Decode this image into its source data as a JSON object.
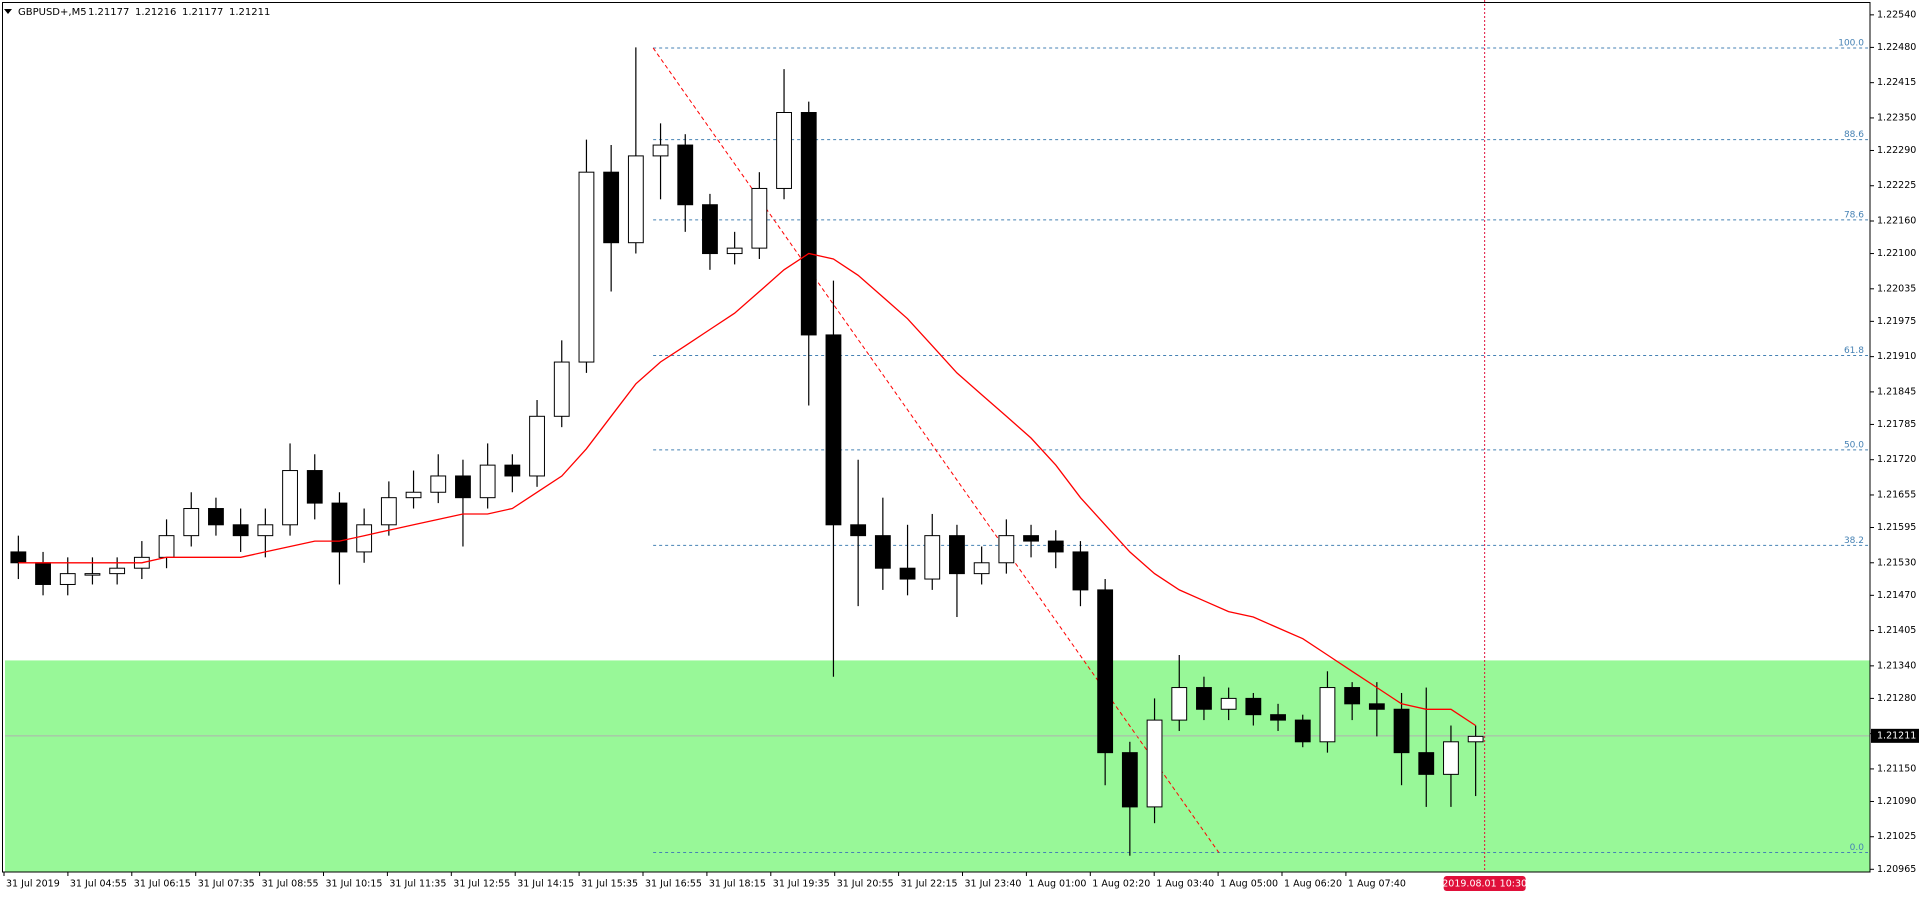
{
  "chart_data": {
    "type": "candlestick",
    "symbol": "GBPUSD+,M5",
    "ohlc": [
      1.21177,
      1.21216,
      1.21177,
      1.21211
    ],
    "open": [
      1.2155,
      1.2153,
      1.2149,
      1.2151,
      1.2151,
      1.2152,
      1.2154,
      1.2158,
      1.2163,
      1.216,
      1.2158,
      1.216,
      1.217,
      1.2164,
      1.2155,
      1.216,
      1.2165,
      1.2166,
      1.2169,
      1.2165,
      1.2171,
      1.2169,
      1.218,
      1.219,
      1.2225,
      1.2212,
      1.2228,
      1.223,
      1.2219,
      1.221,
      1.2211,
      1.2222,
      1.2236,
      1.2195,
      1.216,
      1.2158,
      1.2152,
      1.215,
      1.2158,
      1.2151,
      1.2153,
      1.2158,
      1.2157,
      1.2155,
      1.2148,
      1.2118,
      1.2108,
      1.2124,
      1.213,
      1.2126,
      1.2128,
      1.2125,
      1.2124,
      1.212,
      1.213,
      1.2127,
      1.2126,
      1.2118,
      1.2114,
      1.212
    ],
    "high": [
      1.2158,
      1.2155,
      1.2154,
      1.2154,
      1.2154,
      1.2157,
      1.2161,
      1.2166,
      1.2165,
      1.2163,
      1.2163,
      1.2175,
      1.2173,
      1.2166,
      1.2163,
      1.2168,
      1.217,
      1.2173,
      1.2172,
      1.2175,
      1.2173,
      1.2183,
      1.2194,
      1.2231,
      1.223,
      1.2248,
      1.2234,
      1.2232,
      1.2221,
      1.2214,
      1.2225,
      1.2244,
      1.2238,
      1.2205,
      1.2172,
      1.2165,
      1.216,
      1.2162,
      1.216,
      1.2156,
      1.2161,
      1.216,
      1.2159,
      1.2157,
      1.215,
      1.212,
      1.2128,
      1.2136,
      1.2132,
      1.213,
      1.2129,
      1.2127,
      1.2125,
      1.2133,
      1.2131,
      1.2131,
      1.2129,
      1.213,
      1.2123,
      1.2123
    ],
    "low": [
      1.215,
      1.2147,
      1.2147,
      1.2149,
      1.2149,
      1.215,
      1.2152,
      1.2156,
      1.2158,
      1.2155,
      1.2154,
      1.2158,
      1.2161,
      1.2149,
      1.2153,
      1.2158,
      1.2163,
      1.2164,
      1.2156,
      1.2163,
      1.2166,
      1.2167,
      1.2178,
      1.2188,
      1.2203,
      1.221,
      1.222,
      1.2214,
      1.2207,
      1.2208,
      1.2209,
      1.222,
      1.2182,
      1.2132,
      1.2145,
      1.2148,
      1.2147,
      1.2148,
      1.2143,
      1.2149,
      1.2151,
      1.2154,
      1.2152,
      1.2145,
      1.2112,
      1.2099,
      1.2105,
      1.2122,
      1.2124,
      1.2124,
      1.2123,
      1.2122,
      1.2119,
      1.2118,
      1.2124,
      1.2121,
      1.2112,
      1.2108,
      1.2108,
      1.211
    ],
    "close": [
      1.2153,
      1.2149,
      1.2151,
      1.2151,
      1.2152,
      1.2154,
      1.2158,
      1.2163,
      1.216,
      1.2158,
      1.216,
      1.217,
      1.2164,
      1.2155,
      1.216,
      1.2165,
      1.2166,
      1.2169,
      1.2165,
      1.2171,
      1.2169,
      1.218,
      1.219,
      1.2225,
      1.2212,
      1.2228,
      1.223,
      1.2219,
      1.221,
      1.2211,
      1.2222,
      1.2236,
      1.2195,
      1.216,
      1.2158,
      1.2152,
      1.215,
      1.2158,
      1.2151,
      1.2153,
      1.2158,
      1.2157,
      1.2155,
      1.2148,
      1.2118,
      1.2108,
      1.2124,
      1.213,
      1.2126,
      1.2128,
      1.2125,
      1.2124,
      1.212,
      1.213,
      1.2127,
      1.2126,
      1.2118,
      1.2114,
      1.212,
      1.2121
    ],
    "ma": {
      "color": "#ff0000",
      "values": [
        1.2153,
        1.2153,
        1.2153,
        1.2153,
        1.2153,
        1.2153,
        1.2154,
        1.2154,
        1.2154,
        1.2154,
        1.2155,
        1.2156,
        1.2157,
        1.2157,
        1.2158,
        1.2159,
        1.216,
        1.2161,
        1.2162,
        1.2162,
        1.2163,
        1.2166,
        1.2169,
        1.2174,
        1.218,
        1.2186,
        1.219,
        1.2193,
        1.2196,
        1.2199,
        1.2203,
        1.2207,
        1.221,
        1.2209,
        1.2206,
        1.2202,
        1.2198,
        1.2193,
        1.2188,
        1.2184,
        1.218,
        1.2176,
        1.2171,
        1.2165,
        1.216,
        1.2155,
        1.2151,
        1.2148,
        1.2146,
        1.2144,
        1.2143,
        1.2141,
        1.2139,
        1.2136,
        1.2133,
        1.213,
        1.2127,
        1.2126,
        1.2126,
        1.2123
      ]
    },
    "fib_levels": [
      {
        "value": 1.22479,
        "label": "100.0"
      },
      {
        "value": 1.2231,
        "label": "88.6"
      },
      {
        "value": 1.22162,
        "label": "78.6"
      },
      {
        "value": 1.21912,
        "label": "61.8"
      },
      {
        "value": 1.21738,
        "label": "50.0"
      },
      {
        "value": 1.21562,
        "label": "38.2"
      },
      {
        "value": 1.20996,
        "label": "0.0"
      }
    ],
    "zone": {
      "from": 1.2135,
      "color": "#98f898"
    },
    "ylim": [
      1.2096,
      1.2256
    ],
    "yticks": [
      {
        "value": 1.2254,
        "label": "1.22540"
      },
      {
        "value": 1.2248,
        "label": "1.22480"
      },
      {
        "value": 1.22415,
        "label": "1.22415"
      },
      {
        "value": 1.2235,
        "label": "1.22350"
      },
      {
        "value": 1.2229,
        "label": "1.22290"
      },
      {
        "value": 1.22225,
        "label": "1.22225"
      },
      {
        "value": 1.2216,
        "label": "1.22160"
      },
      {
        "value": 1.221,
        "label": "1.22100"
      },
      {
        "value": 1.22035,
        "label": "1.22035"
      },
      {
        "value": 1.21975,
        "label": "1.21975"
      },
      {
        "value": 1.2191,
        "label": "1.21910"
      },
      {
        "value": 1.21845,
        "label": "1.21845"
      },
      {
        "value": 1.21785,
        "label": "1.21785"
      },
      {
        "value": 1.2172,
        "label": "1.21720"
      },
      {
        "value": 1.21655,
        "label": "1.21655"
      },
      {
        "value": 1.21595,
        "label": "1.21595"
      },
      {
        "value": 1.2153,
        "label": "1.21530"
      },
      {
        "value": 1.2147,
        "label": "1.21470"
      },
      {
        "value": 1.21405,
        "label": "1.21405"
      },
      {
        "value": 1.2134,
        "label": "1.21340"
      },
      {
        "value": 1.2128,
        "label": "1.21280"
      },
      {
        "value": 1.21215,
        "label": "1.21215"
      },
      {
        "value": 1.2115,
        "label": "1.21150"
      },
      {
        "value": 1.2109,
        "label": "1.21090"
      },
      {
        "value": 1.21025,
        "label": "1.21025"
      },
      {
        "value": 1.20965,
        "label": "1.20965"
      }
    ],
    "x_labels": [
      "31 Jul 2019",
      "31 Jul 04:55",
      "31 Jul 06:15",
      "31 Jul 07:35",
      "31 Jul 08:55",
      "31 Jul 10:15",
      "31 Jul 11:35",
      "31 Jul 12:55",
      "31 Jul 14:15",
      "31 Jul 15:35",
      "31 Jul 16:55",
      "31 Jul 18:15",
      "31 Jul 19:35",
      "31 Jul 20:55",
      "31 Jul 22:15",
      "31 Jul 23:40",
      "1 Aug 01:00",
      "1 Aug 02:20",
      "1 Aug 03:40",
      "1 Aug 05:00",
      "1 Aug 06:20",
      "1 Aug 07:40"
    ],
    "cursor_time": "2019.08.01 10:30"
  }
}
